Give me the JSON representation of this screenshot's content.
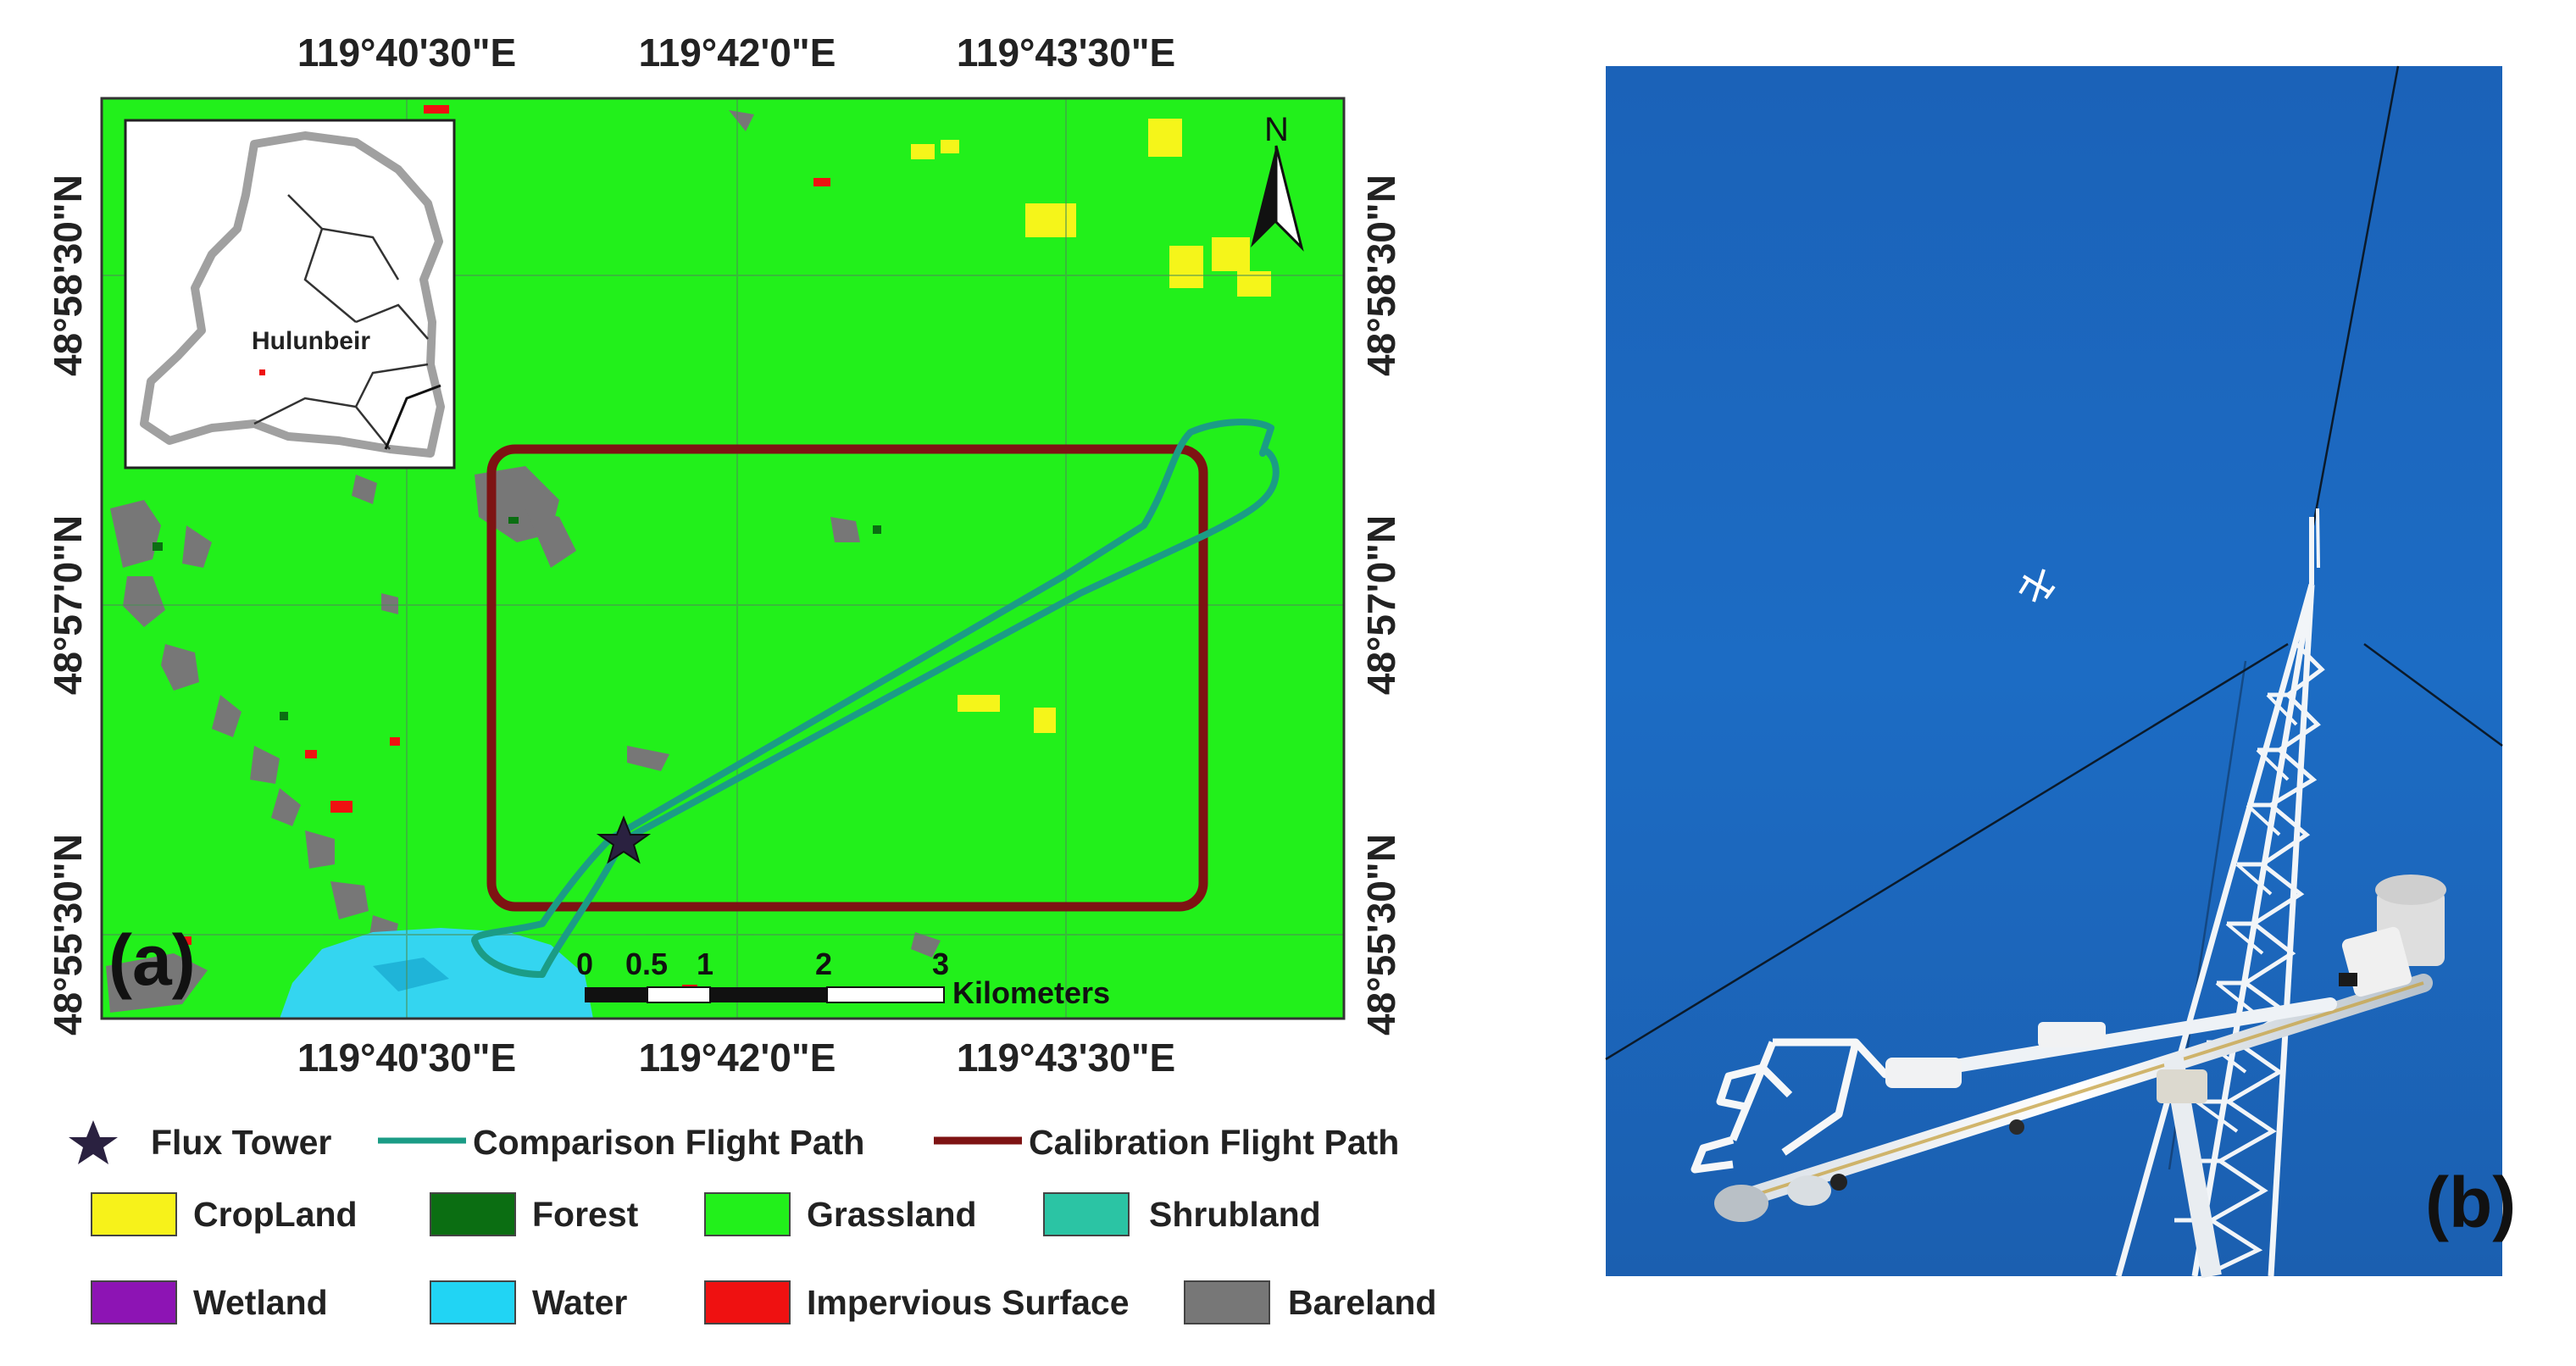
{
  "panel_a": {
    "label": "(a)",
    "top_lon_labels": [
      "119°40'30\"E",
      "119°42'0\"E",
      "119°43'30\"E"
    ],
    "bottom_lon_labels": [
      "119°40'30\"E",
      "119°42'0\"E",
      "119°43'30\"E"
    ],
    "left_lat_labels": [
      "48°58'30\"N",
      "48°57'0\"N",
      "48°55'30\"N"
    ],
    "right_lat_labels": [
      "48°58'30\"N",
      "48°57'0\"N",
      "48°55'30\"N"
    ],
    "north_label": "N",
    "inset": {
      "label": "Hulunbeir"
    },
    "scale_bar": {
      "ticks": [
        "0",
        "0.5",
        "1",
        "2",
        "3"
      ],
      "unit": "Kilometers"
    },
    "colors": {
      "grassland": "#22f01b",
      "calibration_path": "#7e1313",
      "comparison_path": "#1b9c86",
      "water": "#34d5f0",
      "bareland": "#777777",
      "impervious": "#ef1111",
      "cropland": "#f5f51a"
    }
  },
  "legend": {
    "row1": [
      {
        "symbol": "star",
        "label": "Flux Tower",
        "color": "#2a2140"
      },
      {
        "symbol": "line",
        "label": "Comparison Flight Path",
        "color": "#1b9c86"
      },
      {
        "symbol": "line",
        "label": "Calibration Flight Path",
        "color": "#7e1313"
      }
    ],
    "row2": [
      {
        "label": "CropLand",
        "color": "#f7f21a"
      },
      {
        "label": "Forest",
        "color": "#0b6e12"
      },
      {
        "label": "Grassland",
        "color": "#22f01b"
      },
      {
        "label": "Shrubland",
        "color": "#2bc4a4"
      }
    ],
    "row3": [
      {
        "label": "Wetland",
        "color": "#8d14b4"
      },
      {
        "label": "Water",
        "color": "#21d4f4"
      },
      {
        "label": "Impervious Surface",
        "color": "#ef1111"
      },
      {
        "label": "Bareland",
        "color": "#777777"
      }
    ]
  },
  "panel_b": {
    "label": "(b)",
    "sky_color": "#1b67bd"
  }
}
